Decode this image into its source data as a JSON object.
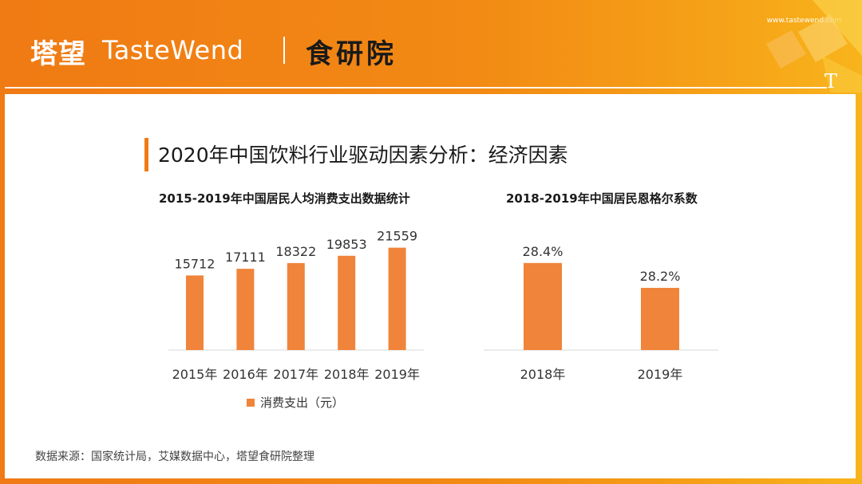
{
  "header": {
    "brand_cn": "塔望",
    "brand_en": "TasteWend",
    "brand_sub": "食研院",
    "site_url": "www.tastewend.com",
    "logo_mark": "T"
  },
  "page": {
    "title": "2020年中国饮料行业驱动因素分析：经济因素",
    "source": "数据来源：国家统计局，艾媒数据中心，塔望食研院整理"
  },
  "colors": {
    "accent": "#f07a14",
    "bar": "#f0843a"
  },
  "chart_data": [
    {
      "type": "bar",
      "title": "2015-2019年中国居民人均消费支出数据统计",
      "categories": [
        "2015年",
        "2016年",
        "2017年",
        "2018年",
        "2019年"
      ],
      "series": [
        {
          "name": "消费支出（元）",
          "values": [
            15712,
            17111,
            18322,
            19853,
            21559
          ]
        }
      ],
      "data_labels": [
        "15712",
        "17111",
        "18322",
        "19853",
        "21559"
      ],
      "ylim": [
        0,
        22000
      ],
      "grid": false,
      "legend": "bottom"
    },
    {
      "type": "bar",
      "title": "2018-2019年中国居民恩格尔系数",
      "categories": [
        "2018年",
        "2019年"
      ],
      "values": [
        28.4,
        28.2
      ],
      "data_labels": [
        "28.4%",
        "28.2%"
      ],
      "ylim": [
        27.7,
        28.45
      ],
      "grid": false
    }
  ]
}
